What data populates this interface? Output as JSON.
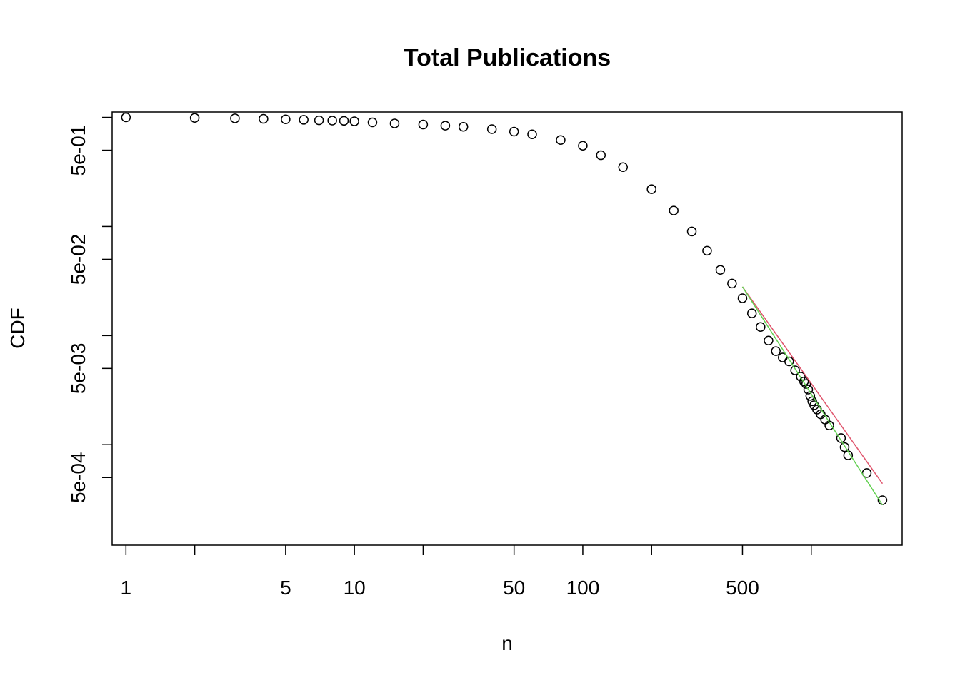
{
  "chart_data": {
    "type": "scatter",
    "title": "Total Publications",
    "xlabel": "n",
    "ylabel": "CDF",
    "x_scale": "log",
    "y_scale": "log",
    "xlim": [
      0.87,
      2500
    ],
    "ylim": [
      0.00012,
      1.12
    ],
    "x_ticks": [
      1,
      2,
      5,
      10,
      20,
      50,
      100,
      200,
      500,
      1000
    ],
    "x_tick_labels": [
      "1",
      "",
      "5",
      "10",
      "",
      "50",
      "100",
      "",
      "500",
      ""
    ],
    "y_ticks": [
      1,
      0.5,
      0.1,
      0.05,
      0.01,
      0.005,
      0.001,
      0.0005
    ],
    "y_tick_labels": [
      "",
      "5e-01",
      "",
      "5e-02",
      "",
      "5e-03",
      "",
      "5e-04"
    ],
    "grid": false,
    "series": [
      {
        "marker": "open-circle",
        "color": "#000000",
        "x": [
          1,
          2,
          3,
          4,
          5,
          6,
          7,
          8,
          9,
          10,
          12,
          15,
          20,
          25,
          30,
          40,
          50,
          60,
          80,
          100,
          120,
          150,
          200,
          250,
          300,
          350,
          400,
          450,
          500,
          550,
          600,
          650,
          700,
          750,
          800,
          850,
          900,
          930,
          950,
          970,
          990,
          1010,
          1030,
          1060,
          1100,
          1150,
          1200,
          1350,
          1400,
          1450,
          1750,
          2050
        ],
        "y": [
          1,
          0.99,
          0.98,
          0.97,
          0.96,
          0.95,
          0.94,
          0.935,
          0.93,
          0.92,
          0.9,
          0.88,
          0.86,
          0.84,
          0.82,
          0.78,
          0.74,
          0.7,
          0.62,
          0.55,
          0.45,
          0.35,
          0.22,
          0.14,
          0.09,
          0.06,
          0.04,
          0.03,
          0.022,
          0.016,
          0.012,
          0.009,
          0.0072,
          0.0063,
          0.0058,
          0.0048,
          0.0042,
          0.0038,
          0.0036,
          0.0032,
          0.0028,
          0.0025,
          0.0023,
          0.0021,
          0.0019,
          0.0017,
          0.0015,
          0.00115,
          0.00095,
          0.0008,
          0.00055,
          0.00031
        ]
      }
    ],
    "fitted_lines": [
      {
        "color": "#DF536B",
        "x": [
          500,
          2050
        ],
        "y": [
          0.028,
          0.00044
        ]
      },
      {
        "color": "#61D04F",
        "x": [
          500,
          2050
        ],
        "y": [
          0.028,
          0.00028
        ]
      }
    ]
  }
}
